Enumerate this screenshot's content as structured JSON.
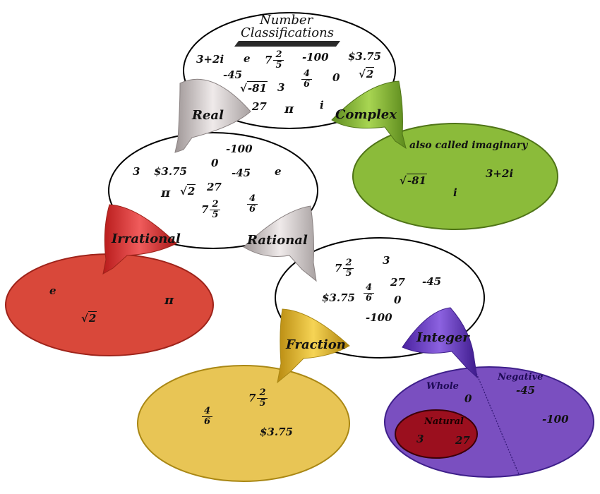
{
  "title": {
    "line1": "Number",
    "line2": "Classifications"
  },
  "top_set": {
    "plain": [
      "3+2i",
      "e",
      "-100",
      "$3.75",
      "-45",
      "0",
      "3",
      "27",
      "π",
      "i"
    ],
    "mixed": {
      "whole": "7",
      "num": "2",
      "den": "5"
    },
    "frac": {
      "num": "4",
      "den": "6"
    },
    "sqrt2": "2",
    "sqrt81": "-81"
  },
  "funnels": {
    "real": "Real",
    "complex": "Complex",
    "irrational": "Irrational",
    "rational": "Rational",
    "fraction": "Fraction",
    "integer": "Integer"
  },
  "complex_set": {
    "note": "also called imaginary",
    "sqrt": "-81",
    "i": "i",
    "c": "3+2i"
  },
  "real_set": {
    "items": [
      "-100",
      "3",
      "$3.75",
      "0",
      "-45",
      "e",
      "π",
      "27"
    ],
    "sqrt": "2",
    "mixed": {
      "whole": "7",
      "num": "2",
      "den": "5"
    },
    "frac": {
      "num": "4",
      "den": "6"
    }
  },
  "irrational_set": {
    "e": "e",
    "pi": "π",
    "sqrt": "2"
  },
  "rational_set": {
    "items": [
      "3",
      "27",
      "-45",
      "$3.75",
      "0",
      "-100"
    ],
    "mixed": {
      "whole": "7",
      "num": "2",
      "den": "5"
    },
    "frac": {
      "num": "4",
      "den": "6"
    }
  },
  "fraction_set": {
    "mixed": {
      "whole": "7",
      "num": "2",
      "den": "5"
    },
    "frac": {
      "num": "4",
      "den": "6"
    },
    "money": "$3.75"
  },
  "integer_set": {
    "whole_label": "Whole",
    "negative_label": "Negative",
    "natural_label": "Natural",
    "zero": "0",
    "neg1": "-45",
    "neg2": "-100",
    "nat1": "3",
    "nat2": "27"
  },
  "colors": {
    "real_funnel": "#c9c3c3",
    "complex": "#8bbb3a",
    "irrational": "#d9483a",
    "fraction": "#e8c555",
    "integer": "#7a4fc0",
    "natural": "#9b0f1e"
  }
}
